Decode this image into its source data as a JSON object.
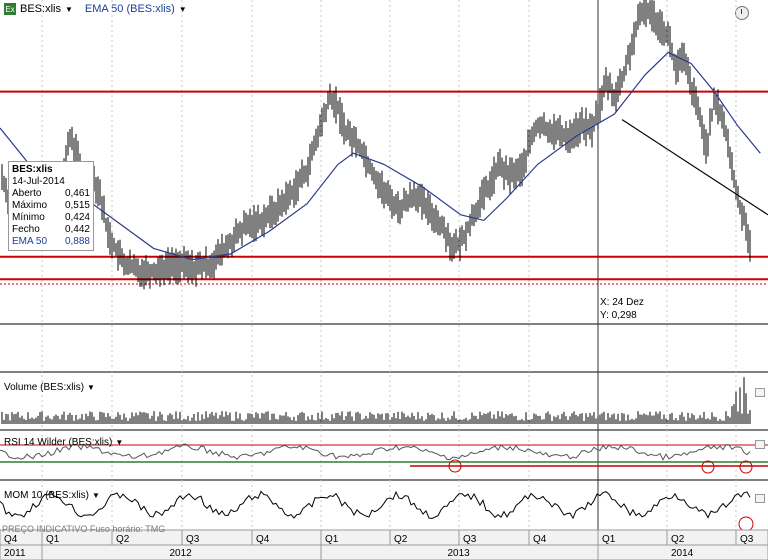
{
  "header": {
    "symbol": "BES:xlis",
    "indicator": "EMA 50 (BES:xlis)",
    "colors": {
      "price": "#000000",
      "ema": "#2b3a8f",
      "level": "#cc0000",
      "trend": "#000000",
      "rsi_mid": "#2e7d32"
    }
  },
  "tooltip": {
    "title": "BES:xlis",
    "date": "14-Jul-2014",
    "rows": [
      {
        "label": "Aberto",
        "value": "0,461"
      },
      {
        "label": "Máximo",
        "value": "0,515"
      },
      {
        "label": "Mínimo",
        "value": "0,424"
      },
      {
        "label": "Fecho",
        "value": "0,442"
      },
      {
        "label": "EMA 50",
        "value": "0,888"
      }
    ]
  },
  "crosshair": {
    "x_label": "X: 24 Dez",
    "y_label": "Y: 0,298"
  },
  "panels": {
    "volume_label": "Volume (BES:xlis)",
    "rsi_label": "RSI 14 Wilder (BES:xlis)",
    "mom_label": "MOM 10 (BES:xlis)"
  },
  "footer": {
    "note": "PREÇO INDICATIVO   Fuso horário: TMG"
  },
  "timeline": {
    "quarters": [
      "Q4",
      "Q1",
      "Q2",
      "Q3",
      "Q4",
      "Q1",
      "Q2",
      "Q3",
      "Q4",
      "Q1",
      "Q2",
      "Q3"
    ],
    "years": [
      "2011",
      "2012",
      "2013",
      "2014"
    ]
  },
  "chart_data": {
    "type": "line",
    "title": "BES:xlis",
    "x_range": [
      "2011-12",
      "2014-07"
    ],
    "ylim": [
      0.25,
      1.4
    ],
    "grid": false,
    "horizontal_levels": [
      1.08,
      0.49,
      0.41
    ],
    "series": [
      {
        "name": "BES:xlis",
        "points": [
          [
            0.0,
            0.8
          ],
          [
            0.02,
            0.62
          ],
          [
            0.04,
            0.58
          ],
          [
            0.06,
            0.66
          ],
          [
            0.08,
            0.74
          ],
          [
            0.09,
            0.92
          ],
          [
            0.1,
            0.86
          ],
          [
            0.11,
            0.72
          ],
          [
            0.12,
            0.78
          ],
          [
            0.13,
            0.72
          ],
          [
            0.14,
            0.58
          ],
          [
            0.15,
            0.52
          ],
          [
            0.16,
            0.47
          ],
          [
            0.18,
            0.44
          ],
          [
            0.2,
            0.44
          ],
          [
            0.22,
            0.46
          ],
          [
            0.24,
            0.46
          ],
          [
            0.25,
            0.45
          ],
          [
            0.27,
            0.46
          ],
          [
            0.28,
            0.48
          ],
          [
            0.3,
            0.54
          ],
          [
            0.32,
            0.6
          ],
          [
            0.34,
            0.62
          ],
          [
            0.36,
            0.66
          ],
          [
            0.38,
            0.72
          ],
          [
            0.4,
            0.8
          ],
          [
            0.42,
            0.98
          ],
          [
            0.43,
            1.06
          ],
          [
            0.44,
            1.02
          ],
          [
            0.45,
            0.94
          ],
          [
            0.47,
            0.88
          ],
          [
            0.48,
            0.82
          ],
          [
            0.5,
            0.72
          ],
          [
            0.52,
            0.66
          ],
          [
            0.54,
            0.72
          ],
          [
            0.55,
            0.68
          ],
          [
            0.57,
            0.62
          ],
          [
            0.58,
            0.58
          ],
          [
            0.59,
            0.52
          ],
          [
            0.6,
            0.54
          ],
          [
            0.62,
            0.66
          ],
          [
            0.64,
            0.76
          ],
          [
            0.65,
            0.82
          ],
          [
            0.66,
            0.78
          ],
          [
            0.68,
            0.8
          ],
          [
            0.69,
            0.9
          ],
          [
            0.7,
            0.96
          ],
          [
            0.72,
            0.94
          ],
          [
            0.74,
            0.92
          ],
          [
            0.76,
            0.96
          ],
          [
            0.77,
            0.94
          ],
          [
            0.78,
            1.02
          ],
          [
            0.79,
            1.12
          ],
          [
            0.8,
            1.06
          ],
          [
            0.81,
            1.12
          ],
          [
            0.82,
            1.22
          ],
          [
            0.83,
            1.32
          ],
          [
            0.84,
            1.38
          ],
          [
            0.85,
            1.35
          ],
          [
            0.86,
            1.32
          ],
          [
            0.87,
            1.28
          ],
          [
            0.88,
            1.16
          ],
          [
            0.89,
            1.2
          ],
          [
            0.9,
            1.1
          ],
          [
            0.91,
            1.0
          ],
          [
            0.92,
            0.88
          ],
          [
            0.93,
            1.04
          ],
          [
            0.94,
            1.0
          ],
          [
            0.95,
            0.86
          ],
          [
            0.96,
            0.7
          ],
          [
            0.97,
            0.62
          ],
          [
            0.98,
            0.5
          ],
          [
            0.99,
            0.4
          ]
        ]
      },
      {
        "name": "EMA 50",
        "points": [
          [
            0.0,
            0.95
          ],
          [
            0.05,
            0.78
          ],
          [
            0.1,
            0.72
          ],
          [
            0.15,
            0.62
          ],
          [
            0.2,
            0.52
          ],
          [
            0.25,
            0.48
          ],
          [
            0.3,
            0.5
          ],
          [
            0.35,
            0.58
          ],
          [
            0.4,
            0.68
          ],
          [
            0.44,
            0.82
          ],
          [
            0.46,
            0.86
          ],
          [
            0.5,
            0.82
          ],
          [
            0.55,
            0.74
          ],
          [
            0.6,
            0.64
          ],
          [
            0.63,
            0.62
          ],
          [
            0.66,
            0.7
          ],
          [
            0.7,
            0.82
          ],
          [
            0.75,
            0.92
          ],
          [
            0.8,
            1.0
          ],
          [
            0.84,
            1.14
          ],
          [
            0.87,
            1.22
          ],
          [
            0.9,
            1.18
          ],
          [
            0.93,
            1.08
          ],
          [
            0.96,
            0.96
          ],
          [
            0.99,
            0.86
          ]
        ]
      }
    ],
    "trendline": [
      [
        0.81,
        0.98
      ],
      [
        1.0,
        0.64
      ]
    ]
  }
}
